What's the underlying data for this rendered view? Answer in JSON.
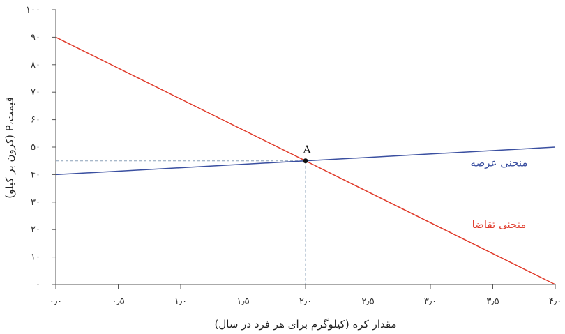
{
  "chart_data": {
    "type": "line",
    "xlabel": "مقدار کره (کیلوگرم برای هر فرد در سال)",
    "ylabel": "قیمت،P (کرون بر کیلو)",
    "xlim": [
      0,
      4
    ],
    "ylim": [
      0,
      100
    ],
    "x_ticks": [
      0,
      0.5,
      1,
      1.5,
      2,
      2.5,
      3,
      3.5,
      4
    ],
    "x_tick_labels": [
      "۰٫۰",
      "۰٫۵",
      "۱٫۰",
      "۱٫۵",
      "۲٫۰",
      "۲٫۵",
      "۳٫۰",
      "۳٫۵",
      "۴٫۰"
    ],
    "y_ticks": [
      0,
      10,
      20,
      30,
      40,
      50,
      60,
      70,
      80,
      90,
      100
    ],
    "y_tick_labels": [
      "۰",
      "۱۰",
      "۲۰",
      "۳۰",
      "۴۰",
      "۵۰",
      "۶۰",
      "۷۰",
      "۸۰",
      "۹۰",
      "۱۰۰"
    ],
    "grid": false,
    "series": [
      {
        "name": "منحنی عرضه",
        "x": [
          0,
          4
        ],
        "y": [
          40,
          50
        ],
        "color": "#3a4fa0",
        "label_at": [
          3.55,
          43
        ]
      },
      {
        "name": "منحنی تقاضا",
        "x": [
          0,
          4
        ],
        "y": [
          90,
          0
        ],
        "color": "#e03a2a",
        "label_at": [
          3.55,
          20.5
        ]
      }
    ],
    "points": [
      {
        "label": "A",
        "x": 2,
        "y": 45
      }
    ],
    "guides": {
      "x": 2,
      "y": 45,
      "color": "#8aa0b8"
    }
  }
}
